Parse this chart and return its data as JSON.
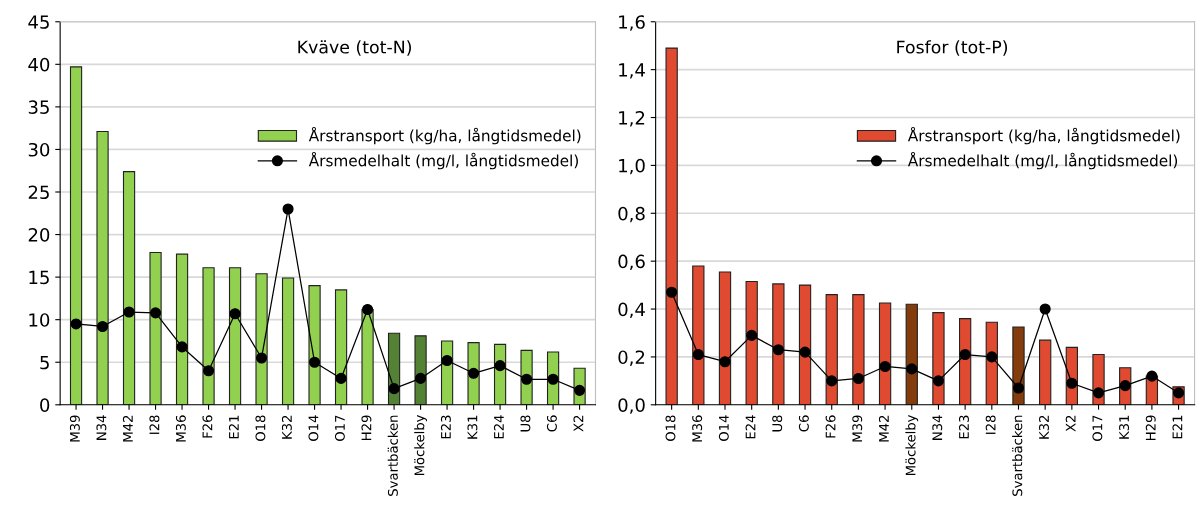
{
  "chart_data": [
    {
      "type": "bar",
      "title": "Kväve (tot-N)",
      "categories": [
        "M39",
        "N34",
        "M42",
        "I28",
        "M36",
        "F26",
        "E21",
        "O18",
        "K32",
        "O14",
        "O17",
        "H29",
        "Svartbäcken",
        "Möckelby",
        "E23",
        "K31",
        "E24",
        "U8",
        "C6",
        "X2"
      ],
      "series": [
        {
          "name": "Årstransport (kg/ha, långtidsmedel)",
          "color": "#92d050",
          "colors": [
            "#92d050",
            "#92d050",
            "#92d050",
            "#92d050",
            "#92d050",
            "#92d050",
            "#92d050",
            "#92d050",
            "#92d050",
            "#92d050",
            "#92d050",
            "#92d050",
            "#548235",
            "#548235",
            "#92d050",
            "#92d050",
            "#92d050",
            "#92d050",
            "#92d050",
            "#92d050"
          ],
          "values": [
            39.7,
            32.1,
            27.4,
            17.9,
            17.7,
            16.1,
            16.1,
            15.4,
            14.9,
            14.0,
            13.5,
            11.2,
            8.4,
            8.1,
            7.5,
            7.3,
            7.1,
            6.4,
            6.2,
            4.3
          ]
        },
        {
          "name": "Årsmedelhalt (mg/l, långtidsmedel)",
          "type": "line",
          "color": "#000000",
          "marker": "circle",
          "values": [
            9.5,
            9.2,
            10.9,
            10.8,
            6.8,
            4.0,
            10.7,
            5.5,
            23.0,
            5.0,
            3.1,
            11.2,
            1.9,
            3.1,
            5.2,
            3.7,
            4.6,
            3.0,
            3.0,
            1.7
          ]
        }
      ],
      "ylim": [
        0,
        45
      ],
      "yticks": [
        0,
        5,
        10,
        15,
        20,
        25,
        30,
        35,
        40,
        45
      ],
      "grid": "y",
      "legend": "right"
    },
    {
      "type": "bar",
      "title": "Fosfor (tot-P)",
      "categories": [
        "O18",
        "M36",
        "O14",
        "E24",
        "U8",
        "C6",
        "F26",
        "M39",
        "M42",
        "Möckelby",
        "N34",
        "E23",
        "I28",
        "Svartbäcken",
        "K32",
        "X2",
        "O17",
        "K31",
        "H29",
        "E21"
      ],
      "series": [
        {
          "name": "Årstransport (kg/ha, långtidsmedel)",
          "color": "#e04a30",
          "colors": [
            "#e04a30",
            "#e04a30",
            "#e04a30",
            "#e04a30",
            "#e04a30",
            "#e04a30",
            "#e04a30",
            "#e04a30",
            "#e04a30",
            "#843c0c",
            "#e04a30",
            "#e04a30",
            "#e04a30",
            "#843c0c",
            "#e04a30",
            "#e04a30",
            "#e04a30",
            "#e04a30",
            "#e04a30",
            "#e04a30"
          ],
          "values": [
            1.49,
            0.58,
            0.555,
            0.515,
            0.505,
            0.5,
            0.46,
            0.46,
            0.425,
            0.42,
            0.385,
            0.36,
            0.345,
            0.325,
            0.27,
            0.24,
            0.21,
            0.155,
            0.12,
            0.075
          ]
        },
        {
          "name": "Årsmedelhalt (mg/l, långtidsmedel)",
          "type": "line",
          "color": "#000000",
          "marker": "circle",
          "values": [
            0.47,
            0.21,
            0.18,
            0.29,
            0.23,
            0.22,
            0.1,
            0.11,
            0.16,
            0.15,
            0.1,
            0.21,
            0.2,
            0.07,
            0.4,
            0.09,
            0.05,
            0.08,
            0.12,
            0.05
          ]
        }
      ],
      "ylim": [
        0,
        1.6
      ],
      "yticks": [
        {
          "value": 0,
          "label": "0,0"
        },
        {
          "value": 0.2,
          "label": "0,2"
        },
        {
          "value": 0.4,
          "label": "0,4"
        },
        {
          "value": 0.6,
          "label": "0,6"
        },
        {
          "value": 0.8,
          "label": "0,8"
        },
        {
          "value": 1.0,
          "label": "1,0"
        },
        {
          "value": 1.2,
          "label": "1,2"
        },
        {
          "value": 1.4,
          "label": "1,4"
        },
        {
          "value": 1.6,
          "label": "1,6"
        }
      ],
      "grid": "y",
      "legend": "right"
    }
  ]
}
